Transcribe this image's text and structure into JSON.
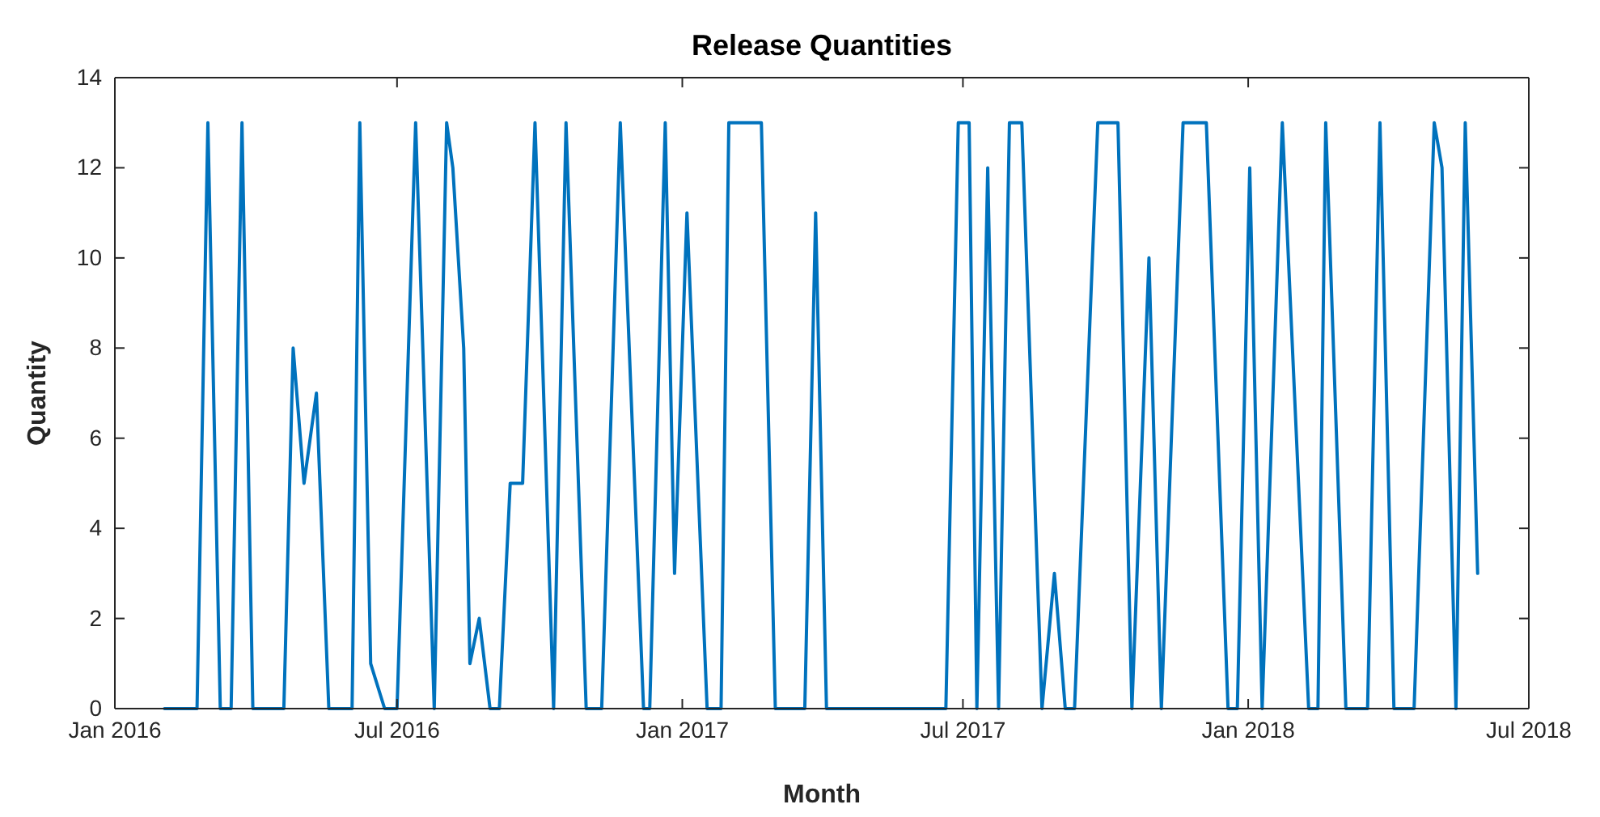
{
  "chart_data": {
    "type": "line",
    "title": "Release Quantities",
    "xlabel": "Month",
    "ylabel": "Quantity",
    "xlim": [
      "2016-01-01",
      "2018-07-01"
    ],
    "xticks": [
      {
        "value": "2016-01-01",
        "label": "Jan 2016"
      },
      {
        "value": "2016-07-01",
        "label": "Jul 2016"
      },
      {
        "value": "2017-01-01",
        "label": "Jan 2017"
      },
      {
        "value": "2017-07-01",
        "label": "Jul 2017"
      },
      {
        "value": "2018-01-01",
        "label": "Jan 2018"
      },
      {
        "value": "2018-07-01",
        "label": "Jul 2018"
      }
    ],
    "ylim": [
      0,
      14
    ],
    "yticks": [
      0,
      2,
      4,
      6,
      8,
      10,
      12,
      14
    ],
    "grid": false,
    "series": [
      {
        "color": "#0072bd",
        "x": [
          "2016-02-02",
          "2016-02-23",
          "2016-03-01",
          "2016-03-09",
          "2016-03-16",
          "2016-03-23",
          "2016-03-30",
          "2016-04-19",
          "2016-04-25",
          "2016-05-02",
          "2016-05-10",
          "2016-05-18",
          "2016-06-02",
          "2016-06-07",
          "2016-06-14",
          "2016-06-23",
          "2016-07-01",
          "2016-07-13",
          "2016-07-25",
          "2016-08-02",
          "2016-08-06",
          "2016-08-13",
          "2016-08-17",
          "2016-08-23",
          "2016-08-30",
          "2016-09-05",
          "2016-09-12",
          "2016-09-20",
          "2016-09-28",
          "2016-10-10",
          "2016-10-18",
          "2016-10-31",
          "2016-11-10",
          "2016-11-22",
          "2016-12-07",
          "2016-12-11",
          "2016-12-21",
          "2016-12-27",
          "2017-01-04",
          "2017-01-17",
          "2017-01-26",
          "2017-01-31",
          "2017-02-21",
          "2017-03-02",
          "2017-03-21",
          "2017-03-28",
          "2017-04-04",
          "2017-06-20",
          "2017-06-28",
          "2017-07-05",
          "2017-07-10",
          "2017-07-17",
          "2017-07-24",
          "2017-07-31",
          "2017-08-08",
          "2017-08-21",
          "2017-08-29",
          "2017-09-05",
          "2017-09-11",
          "2017-09-26",
          "2017-10-09",
          "2017-10-18",
          "2017-10-29",
          "2017-11-06",
          "2017-11-20",
          "2017-12-05",
          "2017-12-19",
          "2017-12-25",
          "2018-01-02",
          "2018-01-10",
          "2018-01-23",
          "2018-02-09",
          "2018-02-15",
          "2018-02-20",
          "2018-03-05",
          "2018-03-19",
          "2018-03-27",
          "2018-04-05",
          "2018-04-18",
          "2018-05-01",
          "2018-05-06",
          "2018-05-15",
          "2018-05-21",
          "2018-05-29"
        ],
        "values": [
          0,
          0,
          13,
          0,
          0,
          13,
          0,
          0,
          8,
          5,
          7,
          0,
          0,
          13,
          1,
          0,
          0,
          13,
          0,
          13,
          12,
          8,
          1,
          2,
          0,
          0,
          5,
          5,
          13,
          0,
          13,
          0,
          0,
          13,
          0,
          0,
          13,
          3,
          11,
          0,
          0,
          13,
          13,
          0,
          0,
          11,
          0,
          0,
          13,
          13,
          0,
          12,
          0,
          13,
          13,
          0,
          3,
          0,
          0,
          13,
          13,
          0,
          10,
          0,
          13,
          13,
          0,
          0,
          12,
          0,
          13,
          0,
          0,
          13,
          0,
          0,
          13,
          0,
          0,
          13,
          12,
          0,
          13,
          3
        ]
      }
    ]
  }
}
